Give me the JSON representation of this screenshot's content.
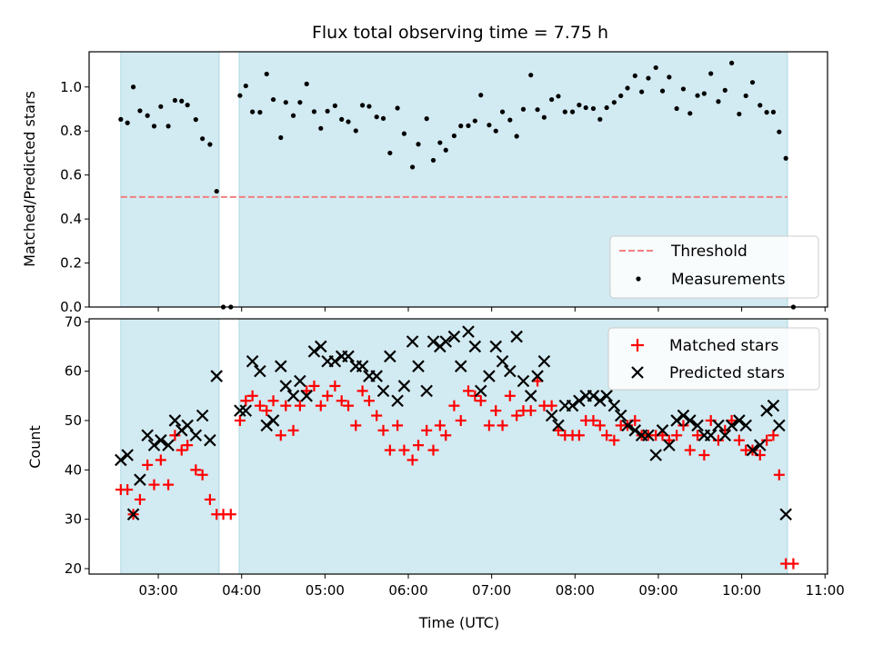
{
  "chart_data": [
    {
      "type": "scatter",
      "title": "Flux total observing time = 7.75 h",
      "xlabel": "",
      "ylabel": "Matched/Predicted stars",
      "ylim": [
        0,
        1.16
      ],
      "xlim_hours": [
        2.17,
        11.03
      ],
      "yticks": [
        "0.0",
        "0.2",
        "0.4",
        "0.6",
        "0.8",
        "1.0"
      ],
      "yticks_values": [
        0,
        0.2,
        0.4,
        0.6,
        0.8,
        1.0
      ],
      "threshold": 0.5,
      "shaded_spans_hours": [
        [
          2.55,
          3.73
        ],
        [
          3.97,
          10.55
        ]
      ],
      "legend": {
        "placement": "lower-right",
        "entries": [
          "Threshold",
          "Measurements"
        ]
      },
      "colors": {
        "threshold": "#f08080",
        "measurements": "#000000",
        "span": "#add8e6"
      },
      "series": [
        {
          "name": "Measurements",
          "points": [
            [
              2.55,
              0.853
            ],
            [
              2.63,
              0.837
            ],
            [
              2.7,
              1.0
            ],
            [
              2.78,
              0.892
            ],
            [
              2.87,
              0.87
            ],
            [
              2.95,
              0.822
            ],
            [
              3.03,
              0.911
            ],
            [
              3.12,
              0.822
            ],
            [
              3.2,
              0.939
            ],
            [
              3.28,
              0.936
            ],
            [
              3.35,
              0.918
            ],
            [
              3.45,
              0.852
            ],
            [
              3.53,
              0.765
            ],
            [
              3.62,
              0.739
            ],
            [
              3.7,
              0.526
            ],
            [
              3.78,
              0.0
            ],
            [
              3.87,
              0.0
            ],
            [
              3.98,
              0.961
            ],
            [
              4.05,
              1.005
            ],
            [
              4.13,
              0.887
            ],
            [
              4.22,
              0.885
            ],
            [
              4.3,
              1.059
            ],
            [
              4.38,
              0.943
            ],
            [
              4.47,
              0.77
            ],
            [
              4.53,
              0.93
            ],
            [
              4.62,
              0.87
            ],
            [
              4.7,
              0.93
            ],
            [
              4.78,
              1.014
            ],
            [
              4.87,
              0.888
            ],
            [
              4.95,
              0.812
            ],
            [
              5.03,
              0.89
            ],
            [
              5.12,
              0.915
            ],
            [
              5.2,
              0.853
            ],
            [
              5.28,
              0.842
            ],
            [
              5.37,
              0.801
            ],
            [
              5.45,
              0.917
            ],
            [
              5.53,
              0.912
            ],
            [
              5.62,
              0.864
            ],
            [
              5.7,
              0.857
            ],
            [
              5.78,
              0.7
            ],
            [
              5.87,
              0.904
            ],
            [
              5.95,
              0.788
            ],
            [
              6.05,
              0.636
            ],
            [
              6.12,
              0.74
            ],
            [
              6.22,
              0.856
            ],
            [
              6.3,
              0.667
            ],
            [
              6.38,
              0.747
            ],
            [
              6.45,
              0.713
            ],
            [
              6.55,
              0.778
            ],
            [
              6.63,
              0.823
            ],
            [
              6.72,
              0.824
            ],
            [
              6.8,
              0.846
            ],
            [
              6.87,
              0.963
            ],
            [
              6.97,
              0.827
            ],
            [
              7.05,
              0.8
            ],
            [
              7.13,
              0.887
            ],
            [
              7.22,
              0.85
            ],
            [
              7.3,
              0.776
            ],
            [
              7.38,
              0.899
            ],
            [
              7.47,
              1.054
            ],
            [
              7.55,
              0.897
            ],
            [
              7.63,
              0.862
            ],
            [
              7.72,
              0.943
            ],
            [
              7.8,
              0.958
            ],
            [
              7.88,
              0.887
            ],
            [
              7.97,
              0.887
            ],
            [
              8.05,
              0.918
            ],
            [
              8.13,
              0.906
            ],
            [
              8.22,
              0.902
            ],
            [
              8.3,
              0.853
            ],
            [
              8.38,
              0.906
            ],
            [
              8.47,
              0.93
            ],
            [
              8.55,
              0.96
            ],
            [
              8.63,
              0.995
            ],
            [
              8.72,
              1.051
            ],
            [
              8.8,
              0.978
            ],
            [
              8.88,
              1.04
            ],
            [
              8.97,
              1.088
            ],
            [
              9.05,
              0.982
            ],
            [
              9.13,
              1.045
            ],
            [
              9.22,
              0.902
            ],
            [
              9.3,
              0.991
            ],
            [
              9.38,
              0.88
            ],
            [
              9.47,
              0.961
            ],
            [
              9.55,
              0.97
            ],
            [
              9.63,
              1.061
            ],
            [
              9.72,
              0.934
            ],
            [
              9.8,
              0.985
            ],
            [
              9.88,
              1.109
            ],
            [
              9.97,
              0.877
            ],
            [
              10.05,
              0.96
            ],
            [
              10.13,
              1.021
            ],
            [
              10.22,
              0.917
            ],
            [
              10.3,
              0.885
            ],
            [
              10.38,
              0.886
            ],
            [
              10.45,
              0.796
            ],
            [
              10.53,
              0.676
            ],
            [
              10.62,
              0.0
            ]
          ]
        }
      ]
    },
    {
      "type": "scatter",
      "title": "",
      "xlabel": "Time (UTC)",
      "ylabel": "Count",
      "ylim": [
        18.9,
        70.6
      ],
      "xlim_hours": [
        2.17,
        11.03
      ],
      "yticks": [
        "20",
        "30",
        "40",
        "50",
        "60",
        "70"
      ],
      "yticks_values": [
        20,
        30,
        40,
        50,
        60,
        70
      ],
      "xticks": [
        "03:00",
        "04:00",
        "05:00",
        "06:00",
        "07:00",
        "08:00",
        "09:00",
        "10:00",
        "11:00"
      ],
      "xticks_values": [
        3,
        4,
        5,
        6,
        7,
        8,
        9,
        10,
        11
      ],
      "shaded_spans_hours": [
        [
          2.55,
          3.73
        ],
        [
          3.97,
          10.55
        ]
      ],
      "legend": {
        "placement": "top-right",
        "entries": [
          "Matched stars",
          "Predicted stars"
        ]
      },
      "colors": {
        "matched": "#ff0000",
        "predicted": "#000000",
        "span": "#add8e6"
      },
      "x_hours": [
        2.55,
        2.63,
        2.7,
        2.78,
        2.87,
        2.95,
        3.03,
        3.12,
        3.2,
        3.28,
        3.35,
        3.45,
        3.53,
        3.62,
        3.7,
        3.78,
        3.87,
        3.98,
        4.05,
        4.13,
        4.22,
        4.3,
        4.38,
        4.47,
        4.53,
        4.62,
        4.7,
        4.78,
        4.87,
        4.95,
        5.03,
        5.12,
        5.2,
        5.28,
        5.37,
        5.45,
        5.53,
        5.62,
        5.7,
        5.78,
        5.87,
        5.95,
        6.05,
        6.12,
        6.22,
        6.3,
        6.38,
        6.45,
        6.55,
        6.63,
        6.72,
        6.8,
        6.87,
        6.97,
        7.05,
        7.13,
        7.22,
        7.3,
        7.38,
        7.47,
        7.55,
        7.63,
        7.72,
        7.8,
        7.88,
        7.97,
        8.05,
        8.13,
        8.22,
        8.3,
        8.38,
        8.47,
        8.55,
        8.63,
        8.72,
        8.8,
        8.88,
        8.97,
        9.05,
        9.13,
        9.22,
        9.3,
        9.38,
        9.47,
        9.55,
        9.63,
        9.72,
        9.8,
        9.88,
        9.97,
        10.05,
        10.13,
        10.22,
        10.3,
        10.38,
        10.45,
        10.53,
        10.62
      ],
      "series": [
        {
          "name": "Matched stars",
          "values": [
            36,
            36,
            31,
            34,
            41,
            37,
            42,
            37,
            47,
            44,
            45,
            40,
            39,
            34,
            31,
            31,
            31,
            50,
            54,
            55,
            53,
            52,
            54,
            47,
            53,
            48,
            53,
            56,
            57,
            53,
            55,
            57,
            54,
            53,
            49,
            56,
            54,
            51,
            48,
            44,
            49,
            44,
            42,
            45,
            48,
            44,
            49,
            47,
            53,
            50,
            56,
            55,
            54,
            49,
            52,
            49,
            55,
            51,
            52,
            52,
            58,
            53,
            53,
            48,
            47,
            47,
            47,
            50,
            50,
            49,
            47,
            46,
            49,
            49,
            50,
            47,
            47,
            47,
            47,
            46,
            47,
            49,
            44,
            47,
            43,
            50,
            46,
            48,
            50,
            46,
            44,
            44,
            43,
            46,
            47,
            39,
            21,
            21
          ]
        },
        {
          "name": "Predicted stars",
          "values": [
            42,
            43,
            31,
            38,
            47,
            45,
            46,
            45,
            50,
            48,
            49,
            47,
            51,
            46,
            59,
            null,
            null,
            52,
            52,
            62,
            60,
            49,
            50,
            61,
            57,
            55,
            58,
            55,
            64,
            65,
            62,
            62,
            63,
            63,
            61,
            61,
            59,
            59,
            56,
            63,
            54,
            57,
            66,
            61,
            56,
            66,
            65,
            66,
            67,
            61,
            68,
            65,
            56,
            59,
            65,
            62,
            60,
            67,
            58,
            55,
            59,
            62,
            51,
            49,
            53,
            53,
            54,
            55,
            55,
            54,
            55,
            53,
            51,
            49,
            48,
            47,
            47,
            43,
            48,
            45,
            50,
            51,
            50,
            49,
            47,
            47,
            49,
            47,
            49,
            50,
            49,
            44,
            45,
            52,
            53,
            49,
            31,
            null
          ]
        }
      ]
    }
  ]
}
